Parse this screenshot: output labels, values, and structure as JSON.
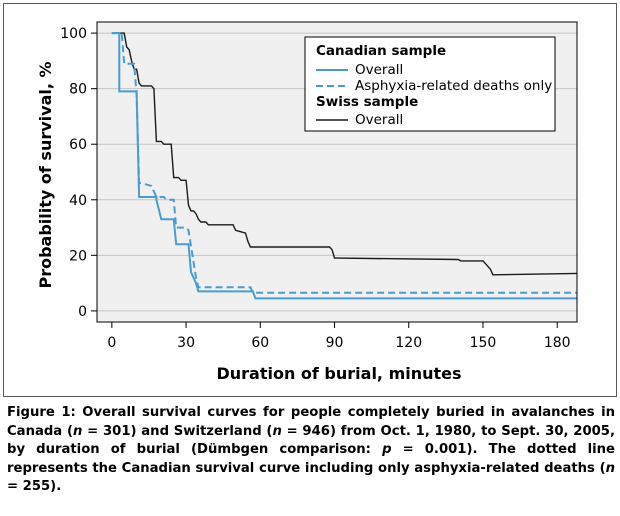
{
  "chart_data": {
    "type": "line",
    "title": "",
    "xlabel": "Duration of burial, minutes",
    "ylabel": "Probability of survival, %",
    "xlim": [
      -6,
      188
    ],
    "ylim": [
      -4,
      104
    ],
    "xticks": [
      0,
      30,
      60,
      90,
      120,
      150,
      180
    ],
    "yticks": [
      0,
      20,
      40,
      60,
      80,
      100
    ],
    "grid": true,
    "legend_position": "top-right",
    "legend": {
      "group1_title": "Canadian sample",
      "group1_items": [
        "Overall",
        "Asphyxia-related deaths only"
      ],
      "group2_title": "Swiss sample",
      "group2_items": [
        "Overall"
      ]
    },
    "series": [
      {
        "name": "Canadian sample – Overall",
        "style": "solid",
        "color": "#4a9ccf",
        "x": [
          0,
          3,
          3,
          10,
          11,
          18,
          18,
          20,
          21,
          25,
          26,
          31,
          32,
          34,
          35,
          57,
          58,
          188
        ],
        "y": [
          100,
          100,
          79,
          79,
          41,
          41,
          40,
          33,
          33,
          33,
          24,
          24,
          14,
          10,
          7,
          7,
          4.5,
          4.5
        ]
      },
      {
        "name": "Canadian sample – Asphyxia-related deaths only",
        "style": "dashed",
        "color": "#4a9ccf",
        "x": [
          0,
          4,
          5,
          9,
          10,
          11,
          12,
          16,
          18,
          21,
          22,
          25,
          26,
          30,
          31,
          34,
          35,
          56,
          57,
          188
        ],
        "y": [
          100,
          100,
          89,
          89,
          78,
          46,
          46,
          45,
          41,
          41,
          40,
          40,
          30,
          30,
          29,
          12,
          8.5,
          8.5,
          6.5,
          6.5
        ]
      },
      {
        "name": "Swiss sample – Overall",
        "style": "solid",
        "color": "#1a1a1a",
        "x": [
          0,
          2,
          5,
          6,
          7,
          8,
          9,
          10,
          11,
          12,
          16,
          17,
          18,
          20,
          21,
          24,
          25,
          27,
          28,
          30,
          31,
          32,
          33,
          34,
          35,
          36,
          38,
          39,
          40,
          42,
          44,
          49,
          50,
          54,
          55,
          56,
          57,
          59,
          60,
          80,
          88,
          89,
          90,
          91,
          140,
          141,
          150,
          151,
          153,
          154,
          188
        ],
        "y": [
          100,
          100,
          100,
          95,
          94,
          90,
          87,
          87,
          82,
          81,
          81,
          80,
          61,
          61,
          60,
          60,
          48,
          48,
          47,
          47,
          38,
          36,
          36,
          35,
          33,
          32,
          32,
          31,
          31,
          31,
          31,
          31,
          29,
          28,
          25,
          23,
          23,
          23,
          23,
          23,
          23,
          22,
          19,
          19,
          18.5,
          18,
          18,
          17,
          15,
          13,
          13.5
        ]
      }
    ]
  },
  "caption": {
    "segments": [
      {
        "t": "Figure 1: Overall survival curves for people completely buried in avalanches in Canada (",
        "i": false
      },
      {
        "t": "n",
        "i": true
      },
      {
        "t": " = 301) and Switzerland (",
        "i": false
      },
      {
        "t": "n",
        "i": true
      },
      {
        "t": " = 946) from Oct. 1, 1980, to Sept. 30, 2005, by duration of burial (Dümbgen comparison: ",
        "i": false
      },
      {
        "t": "p",
        "i": true
      },
      {
        "t": " = 0.001). The dotted line represents the Canadian survival curve including only asphyxia-related deaths (",
        "i": false
      },
      {
        "t": "n",
        "i": true
      },
      {
        "t": " = 255).",
        "i": false
      }
    ]
  },
  "colors": {
    "plot_background": "#f0f0f0",
    "grid": "#c4c4c4",
    "canadian": "#4a9ccf",
    "swiss": "#1a1a1a"
  }
}
